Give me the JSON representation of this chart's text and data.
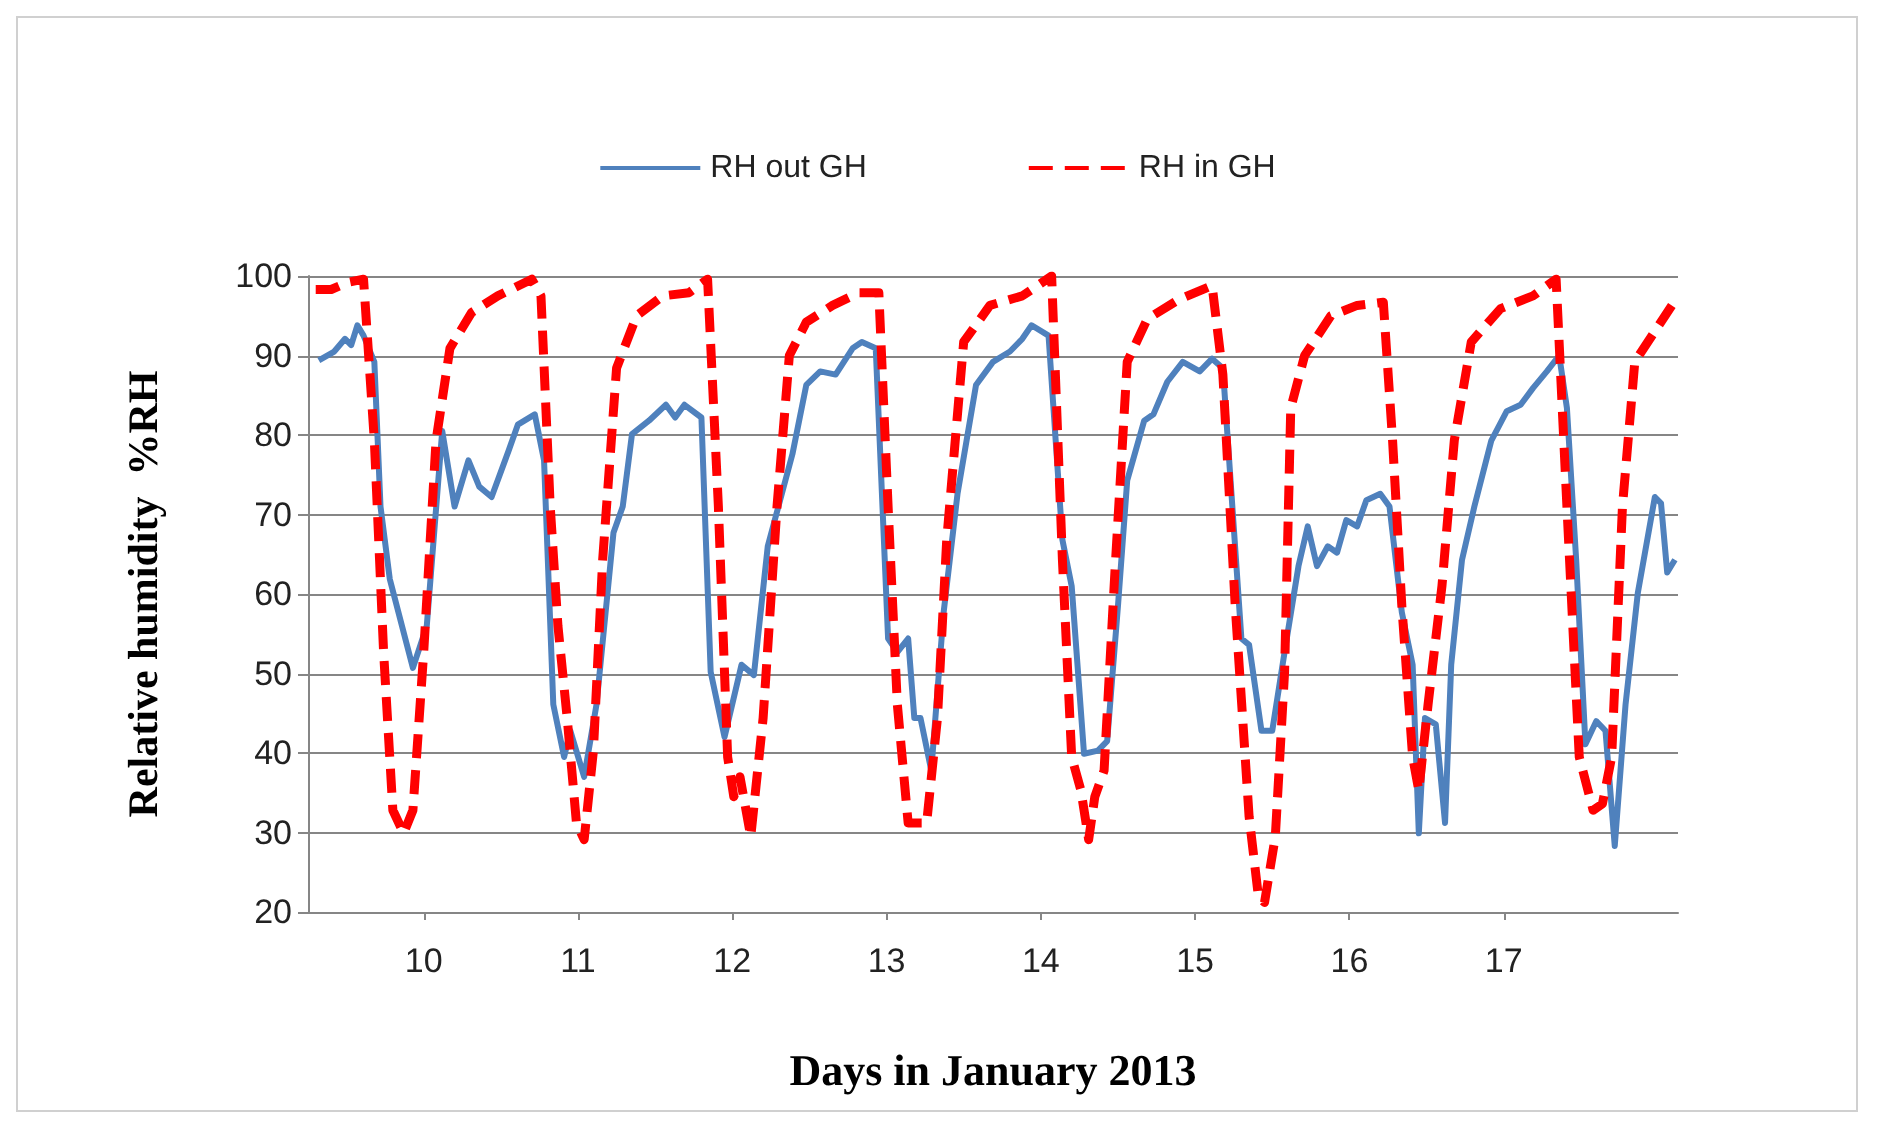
{
  "chart_data": {
    "type": "line",
    "xlabel": "Days in January 2013",
    "ylabel": "Relative humidity  %RH",
    "xlim": [
      9.25,
      18.13
    ],
    "xticks": [
      10,
      11,
      12,
      13,
      14,
      15,
      16,
      17
    ],
    "ylim": [
      20,
      100
    ],
    "yticks": [
      20,
      30,
      40,
      50,
      60,
      70,
      80,
      90,
      100
    ],
    "grid": "y",
    "legend": "top",
    "marker": "none",
    "series": [
      {
        "name": "RH out GH",
        "color": "#4f81bd",
        "line_style": "solid",
        "x": [
          9.32,
          9.42,
          9.49,
          9.53,
          9.57,
          9.61,
          9.68,
          9.72,
          9.78,
          9.93,
          10.02,
          10.12,
          10.2,
          10.29,
          10.36,
          10.44,
          10.55,
          10.61,
          10.72,
          10.78,
          10.84,
          10.91,
          10.95,
          11.04,
          11.12,
          11.23,
          11.29,
          11.35,
          11.46,
          11.57,
          11.63,
          11.69,
          11.8,
          11.86,
          11.95,
          12.06,
          12.14,
          12.23,
          12.31,
          12.39,
          12.48,
          12.57,
          12.67,
          12.78,
          12.84,
          12.93,
          13.01,
          13.07,
          13.14,
          13.18,
          13.22,
          13.29,
          13.37,
          13.46,
          13.58,
          13.69,
          13.8,
          13.88,
          13.94,
          14.05,
          14.14,
          14.2,
          14.28,
          14.37,
          14.43,
          14.5,
          14.56,
          14.67,
          14.73,
          14.82,
          14.92,
          15.03,
          15.11,
          15.18,
          15.3,
          15.35,
          15.43,
          15.5,
          15.58,
          15.67,
          15.73,
          15.79,
          15.86,
          15.92,
          15.98,
          16.05,
          16.11,
          16.2,
          16.26,
          16.34,
          16.41,
          16.45,
          16.49,
          16.56,
          16.62,
          16.66,
          16.73,
          16.81,
          16.92,
          17.02,
          17.11,
          17.19,
          17.28,
          17.36,
          17.41,
          17.47,
          17.53,
          17.6,
          17.66,
          17.72,
          17.79,
          17.87,
          17.98,
          18.02,
          18.06,
          18.11
        ],
        "values": [
          89.4,
          90.5,
          92.1,
          91.3,
          93.8,
          92.5,
          89.2,
          71,
          61.9,
          50.7,
          56,
          80.5,
          71,
          76.8,
          73.5,
          72.2,
          78,
          81.3,
          82.6,
          76.8,
          46.1,
          39.5,
          42.8,
          37,
          46.1,
          67.7,
          71,
          80.1,
          81.8,
          83.8,
          82.2,
          83.8,
          82.2,
          50.2,
          42,
          51.1,
          49.8,
          66,
          71.8,
          77.6,
          86.3,
          88,
          87.6,
          90.9,
          91.7,
          90.9,
          54.4,
          52.7,
          54.4,
          44.4,
          44.4,
          37.8,
          57.7,
          72.6,
          86.3,
          89.2,
          90.5,
          92.1,
          93.8,
          92.5,
          66.8,
          61,
          39.9,
          40.3,
          41.5,
          58.5,
          74.3,
          81.8,
          82.6,
          86.7,
          89.2,
          88,
          89.6,
          88.4,
          54.4,
          53.6,
          42.8,
          42.8,
          52.7,
          63.5,
          68.5,
          63.5,
          66,
          65.2,
          69.3,
          68.5,
          71.8,
          72.6,
          71,
          57.7,
          51.1,
          29.9,
          44.4,
          43.6,
          31.2,
          51.1,
          64.3,
          71,
          79.3,
          83,
          83.8,
          85.9,
          88,
          90,
          83.4,
          64.3,
          41.1,
          44,
          42.8,
          28.3,
          46.1,
          60.2,
          72.2,
          71.4,
          62.7,
          64.3
        ]
      },
      {
        "name": "RH in GH",
        "color": "#ff0000",
        "line_style": "dashed",
        "x": [
          9.3,
          9.4,
          9.51,
          9.61,
          9.68,
          9.74,
          9.8,
          9.87,
          9.93,
          10.0,
          10.08,
          10.17,
          10.31,
          10.48,
          10.7,
          10.76,
          10.82,
          10.87,
          10.93,
          10.99,
          11.04,
          11.1,
          11.16,
          11.25,
          11.38,
          11.55,
          11.72,
          11.84,
          11.91,
          11.97,
          12.01,
          12.05,
          12.12,
          12.2,
          12.29,
          12.37,
          12.48,
          12.65,
          12.82,
          12.95,
          13.01,
          13.07,
          13.14,
          13.26,
          13.33,
          13.39,
          13.5,
          13.67,
          13.88,
          14.07,
          14.14,
          14.2,
          14.26,
          14.31,
          14.35,
          14.41,
          14.48,
          14.56,
          14.69,
          14.9,
          15.11,
          15.18,
          15.26,
          15.35,
          15.41,
          15.45,
          15.52,
          15.58,
          15.62,
          15.71,
          15.88,
          16.05,
          16.22,
          16.28,
          16.34,
          16.41,
          16.45,
          16.51,
          16.6,
          16.68,
          16.79,
          16.98,
          17.19,
          17.34,
          17.41,
          17.49,
          17.58,
          17.64,
          17.7,
          17.77,
          17.85,
          18.09
        ],
        "values": [
          98.3,
          98.3,
          99.2,
          99.6,
          79.3,
          52.7,
          32.8,
          29.9,
          32.8,
          52.7,
          79.3,
          90.9,
          95.4,
          97.5,
          99.6,
          97.5,
          71,
          56,
          44.4,
          31.2,
          29.1,
          40.3,
          64.3,
          88.4,
          95,
          97.5,
          97.9,
          99.6,
          71,
          39.5,
          34.5,
          37,
          29.5,
          44.4,
          71,
          90,
          94.2,
          96.3,
          97.9,
          97.9,
          71,
          46.1,
          31.2,
          31.2,
          44.4,
          66.8,
          91.7,
          96.3,
          97.5,
          100,
          64.3,
          39.5,
          35.3,
          29.1,
          34.5,
          37.8,
          62.7,
          89.2,
          94.6,
          97.1,
          98.8,
          87.6,
          58.5,
          32,
          22,
          21.2,
          29.5,
          50.2,
          83.4,
          90,
          95,
          96.3,
          96.7,
          79.3,
          58.5,
          39.5,
          35.3,
          46.1,
          61,
          79.3,
          91.7,
          95.9,
          97.5,
          99.6,
          71,
          39.5,
          32.8,
          33.6,
          39.5,
          71,
          89.2,
          96.3
        ]
      }
    ]
  }
}
